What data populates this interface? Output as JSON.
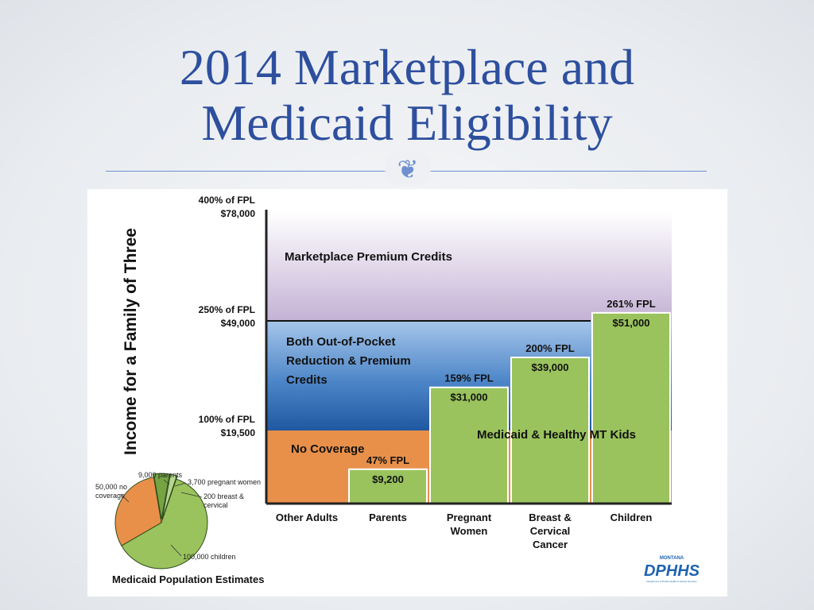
{
  "slide": {
    "title_line1": "2014 Marketplace and",
    "title_line2": "Medicaid Eligibility",
    "ornament": "❦"
  },
  "chart_data": [
    {
      "type": "area",
      "ylabel": "Income for a Family of Three",
      "categories": [
        "Other Adults",
        "Parents",
        "Pregnant Women",
        "Breast & Cervical Cancer",
        "Children"
      ],
      "category_labels": [
        [
          "Other Adults"
        ],
        [
          "Parents"
        ],
        [
          "Pregnant",
          "Women"
        ],
        [
          "Breast &",
          "Cervical",
          "Cancer"
        ],
        [
          "Children"
        ]
      ],
      "y_ticks": [
        {
          "value": 400,
          "line1": "400% of FPL",
          "line2": "$78,000"
        },
        {
          "value": 250,
          "line1": "250% of FPL",
          "line2": "$49,000"
        },
        {
          "value": 100,
          "line1": "100% of FPL",
          "line2": "$19,500"
        }
      ],
      "ylim": [
        0,
        400
      ],
      "medicaid_limits": [
        {
          "category": "Other Adults",
          "fpl_percent": 0,
          "fpl_label": "",
          "income_label": ""
        },
        {
          "category": "Parents",
          "fpl_percent": 47,
          "fpl_label": "47% FPL",
          "income_label": "$9,200"
        },
        {
          "category": "Pregnant Women",
          "fpl_percent": 159,
          "fpl_label": "159% FPL",
          "income_label": "$31,000"
        },
        {
          "category": "Breast & Cervical Cancer",
          "fpl_percent": 200,
          "fpl_label": "200% FPL",
          "income_label": "$39,000"
        },
        {
          "category": "Children",
          "fpl_percent": 261,
          "fpl_label": "261% FPL",
          "income_label": "$51,000"
        }
      ],
      "regions": {
        "marketplace_premium_credits": {
          "label": "Marketplace Premium Credits",
          "from": 250,
          "to": 400
        },
        "both_credits": {
          "lines": [
            "Both Out-of-Pocket",
            "Reduction & Premium",
            "Credits"
          ],
          "from": 100,
          "to": 250
        },
        "no_coverage": {
          "label": "No Coverage",
          "from": 0,
          "to": 100
        },
        "medicaid": {
          "label": "Medicaid & Healthy MT Kids"
        }
      },
      "colors": {
        "marketplace": "#c9b9d8",
        "both_credits": "#3b73b7",
        "no_coverage": "#e8904a",
        "medicaid": "#9ac35d",
        "axis": "#222222"
      }
    },
    {
      "type": "pie",
      "title": "Medicaid Population Estimates",
      "slices": [
        {
          "label": "100,000 children",
          "value": 100000,
          "color": "#9ac35d"
        },
        {
          "label": "50,000 no coverage",
          "value": 50000,
          "color": "#e8904a"
        },
        {
          "label": "9,000 parents",
          "value": 9000,
          "color": "#76a443"
        },
        {
          "label": "3,700 pregnant women",
          "value": 3700,
          "color": "#b7d68e"
        },
        {
          "label": "200 breast & cervical",
          "value": 200,
          "color": "#4f7d2e"
        }
      ],
      "slice_label_lines": {
        "100,000 children": [
          "100,000 children"
        ],
        "50,000 no coverage": [
          "50,000 no",
          "coverage"
        ],
        "9,000 parents": [
          "9,000 parents"
        ],
        "3,700 pregnant women": [
          "3,700 pregnant women"
        ],
        "200 breast & cervical": [
          "200 breast &",
          "cervical"
        ]
      }
    }
  ],
  "logo": {
    "top": "MONTANA",
    "main": "DPHHS",
    "sub": "Department of Public Health & Human Services"
  }
}
